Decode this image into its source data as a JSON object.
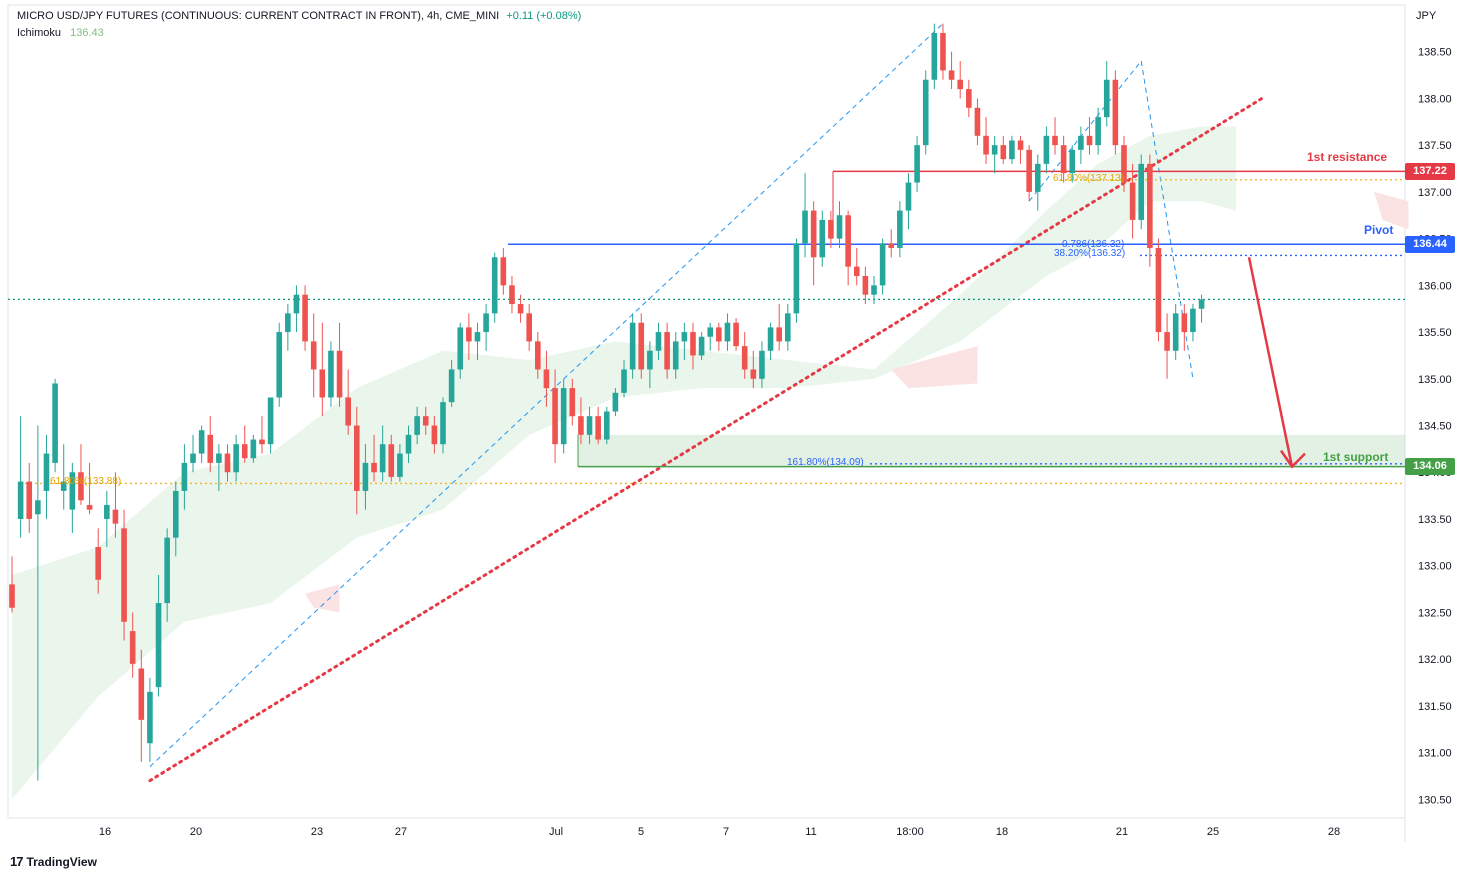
{
  "header": {
    "symbol": "MICRO USD/JPY FUTURES (CONTINUOUS: CURRENT CONTRACT IN FRONT), 4h, CME_MINI",
    "change": "+0.11 (+0.08%)",
    "indicator_name": "Ichimoku",
    "indicator_value": "136.43"
  },
  "currency": "JPY",
  "brand": {
    "logo": "17",
    "name": "TradingView"
  },
  "annotations": {
    "resistance_label": "1st resistance",
    "pivot_label": "Pivot",
    "support_label": "1st support",
    "fib_61_resistance": "61.80%(137.13)",
    "fib_786": "0.786(136.32)",
    "fib_382": "38.20%(136.32)",
    "fib_1618": "161.80%(134.09)",
    "fib_61_low": "61.80%(133.88)"
  },
  "price_tags": {
    "resistance": "137.22",
    "pivot": "136.44",
    "support": "134.06"
  },
  "colors": {
    "up": "#26a69a",
    "down": "#ef5350",
    "resistance": "#e53945",
    "pivot": "#2962ff",
    "support": "#43a047",
    "fib": "#f0b429",
    "cloud_bull": "#e3f2e5",
    "cloud_bear": "#fbe3e3"
  },
  "chart_data": {
    "type": "candlestick",
    "timeframe": "4h",
    "ylim": [
      130.3,
      139.0
    ],
    "y_ticks": [
      "138.50",
      "138.00",
      "137.50",
      "137.00",
      "136.50",
      "136.00",
      "135.50",
      "135.00",
      "134.50",
      "134.00",
      "133.50",
      "133.00",
      "132.50",
      "132.00",
      "131.50",
      "131.00",
      "130.50"
    ],
    "x_ticks": [
      "16",
      "20",
      "23",
      "27",
      "Jul",
      "5",
      "7",
      "11",
      "18:00",
      "18",
      "21",
      "25",
      "28"
    ],
    "levels": {
      "resistance": 137.22,
      "pivot": 136.44,
      "support": 134.06,
      "fib_61_resistance": 137.13,
      "fib_382": 136.32,
      "fib_1618": 134.09,
      "fib_61_low": 133.88,
      "last_price": 135.85
    },
    "projection": {
      "from": 136.3,
      "to": 134.06,
      "direction": "down"
    },
    "candles": [
      [
        132.8,
        133.1,
        132.5,
        132.55
      ],
      [
        133.5,
        134.6,
        133.3,
        133.9
      ],
      [
        133.9,
        134.1,
        133.35,
        133.5
      ],
      [
        133.55,
        134.5,
        130.7,
        133.7
      ],
      [
        133.8,
        134.4,
        133.5,
        134.2
      ],
      [
        134.1,
        135.0,
        134.0,
        134.95
      ],
      [
        133.8,
        134.3,
        133.6,
        133.9
      ],
      [
        133.6,
        134.1,
        133.35,
        134.0
      ],
      [
        134.0,
        134.3,
        133.65,
        133.7
      ],
      [
        133.65,
        134.1,
        133.55,
        133.6
      ],
      [
        133.2,
        133.4,
        132.7,
        132.85
      ],
      [
        133.5,
        133.8,
        133.2,
        133.65
      ],
      [
        133.6,
        134.0,
        133.3,
        133.45
      ],
      [
        133.4,
        133.6,
        132.2,
        132.4
      ],
      [
        132.3,
        132.5,
        131.8,
        131.95
      ],
      [
        131.9,
        132.1,
        130.9,
        131.35
      ],
      [
        131.1,
        131.8,
        130.9,
        131.65
      ],
      [
        131.7,
        132.9,
        131.6,
        132.6
      ],
      [
        132.6,
        133.4,
        132.4,
        133.3
      ],
      [
        133.3,
        133.9,
        133.1,
        133.8
      ],
      [
        133.8,
        134.3,
        133.6,
        134.1
      ],
      [
        134.1,
        134.4,
        134.0,
        134.2
      ],
      [
        134.2,
        134.5,
        134.1,
        134.45
      ],
      [
        134.4,
        134.6,
        134.0,
        134.1
      ],
      [
        134.1,
        134.3,
        133.8,
        134.2
      ],
      [
        134.2,
        134.3,
        133.9,
        134.0
      ],
      [
        134.0,
        134.4,
        133.9,
        134.3
      ],
      [
        134.3,
        134.5,
        134.1,
        134.15
      ],
      [
        134.15,
        134.4,
        134.1,
        134.35
      ],
      [
        134.35,
        134.6,
        134.2,
        134.3
      ],
      [
        134.3,
        134.8,
        134.2,
        134.8
      ],
      [
        134.8,
        135.6,
        134.7,
        135.5
      ],
      [
        135.5,
        135.8,
        135.3,
        135.7
      ],
      [
        135.7,
        136.0,
        135.5,
        135.9
      ],
      [
        135.9,
        136.0,
        135.3,
        135.4
      ],
      [
        135.4,
        135.7,
        134.8,
        135.1
      ],
      [
        135.1,
        135.6,
        134.6,
        134.8
      ],
      [
        134.8,
        135.4,
        134.7,
        135.3
      ],
      [
        135.3,
        135.6,
        134.7,
        134.8
      ],
      [
        134.8,
        135.1,
        134.4,
        134.5
      ],
      [
        134.5,
        134.7,
        133.55,
        133.8
      ],
      [
        133.8,
        134.3,
        133.6,
        134.1
      ],
      [
        134.1,
        134.4,
        133.9,
        134.0
      ],
      [
        134.0,
        134.5,
        133.9,
        134.3
      ],
      [
        134.3,
        134.4,
        133.9,
        133.95
      ],
      [
        133.95,
        134.3,
        133.9,
        134.2
      ],
      [
        134.2,
        134.5,
        134.1,
        134.4
      ],
      [
        134.4,
        134.7,
        134.3,
        134.6
      ],
      [
        134.6,
        134.7,
        134.4,
        134.5
      ],
      [
        134.5,
        134.6,
        134.2,
        134.3
      ],
      [
        134.3,
        134.8,
        134.2,
        134.75
      ],
      [
        134.75,
        135.2,
        134.7,
        135.1
      ],
      [
        135.1,
        135.6,
        135.0,
        135.55
      ],
      [
        135.55,
        135.7,
        135.2,
        135.4
      ],
      [
        135.4,
        135.6,
        135.2,
        135.5
      ],
      [
        135.5,
        135.8,
        135.3,
        135.7
      ],
      [
        135.7,
        136.35,
        135.6,
        136.3
      ],
      [
        136.3,
        136.4,
        135.9,
        136.0
      ],
      [
        136.0,
        136.1,
        135.7,
        135.8
      ],
      [
        135.8,
        135.9,
        135.6,
        135.7
      ],
      [
        135.7,
        135.8,
        135.3,
        135.4
      ],
      [
        135.4,
        135.5,
        135.0,
        135.1
      ],
      [
        135.1,
        135.3,
        134.7,
        134.9
      ],
      [
        134.9,
        135.1,
        134.1,
        134.3
      ],
      [
        134.3,
        135.0,
        134.2,
        134.9
      ],
      [
        134.9,
        135.0,
        134.5,
        134.6
      ],
      [
        134.6,
        134.8,
        134.3,
        134.4
      ],
      [
        134.4,
        134.7,
        134.3,
        134.6
      ],
      [
        134.6,
        134.7,
        134.3,
        134.35
      ],
      [
        134.35,
        134.7,
        134.3,
        134.65
      ],
      [
        134.65,
        134.9,
        134.6,
        134.85
      ],
      [
        134.85,
        135.2,
        134.8,
        135.1
      ],
      [
        135.1,
        135.7,
        135.0,
        135.6
      ],
      [
        135.6,
        135.7,
        135.0,
        135.1
      ],
      [
        135.1,
        135.4,
        134.9,
        135.3
      ],
      [
        135.3,
        135.6,
        135.2,
        135.5
      ],
      [
        135.5,
        135.6,
        135.0,
        135.1
      ],
      [
        135.1,
        135.5,
        135.0,
        135.4
      ],
      [
        135.4,
        135.6,
        135.2,
        135.5
      ],
      [
        135.5,
        135.6,
        135.1,
        135.25
      ],
      [
        135.25,
        135.5,
        135.2,
        135.45
      ],
      [
        135.45,
        135.6,
        135.3,
        135.55
      ],
      [
        135.55,
        135.6,
        135.3,
        135.4
      ],
      [
        135.4,
        135.7,
        135.3,
        135.6
      ],
      [
        135.6,
        135.65,
        135.3,
        135.35
      ],
      [
        135.35,
        135.5,
        135.0,
        135.1
      ],
      [
        135.1,
        135.3,
        134.9,
        135.0
      ],
      [
        135.0,
        135.4,
        134.9,
        135.3
      ],
      [
        135.3,
        135.6,
        135.2,
        135.55
      ],
      [
        135.55,
        135.8,
        135.3,
        135.4
      ],
      [
        135.4,
        135.8,
        135.3,
        135.7
      ],
      [
        135.7,
        136.5,
        135.6,
        136.45
      ],
      [
        136.45,
        137.2,
        136.3,
        136.8
      ],
      [
        136.8,
        136.9,
        136.0,
        136.3
      ],
      [
        136.3,
        136.8,
        136.2,
        136.7
      ],
      [
        136.7,
        136.8,
        136.4,
        136.5
      ],
      [
        136.5,
        136.9,
        136.4,
        136.75
      ],
      [
        136.75,
        136.8,
        136.0,
        136.2
      ],
      [
        136.2,
        136.4,
        136.0,
        136.1
      ],
      [
        136.1,
        136.2,
        135.8,
        135.9
      ],
      [
        135.9,
        136.1,
        135.8,
        136.0
      ],
      [
        136.0,
        136.5,
        135.9,
        136.45
      ],
      [
        136.45,
        136.6,
        136.3,
        136.4
      ],
      [
        136.4,
        136.9,
        136.3,
        136.8
      ],
      [
        136.8,
        137.2,
        136.6,
        137.1
      ],
      [
        137.1,
        137.6,
        137.0,
        137.5
      ],
      [
        137.5,
        138.3,
        137.4,
        138.2
      ],
      [
        138.2,
        138.8,
        138.1,
        138.7
      ],
      [
        138.7,
        138.8,
        138.2,
        138.3
      ],
      [
        138.3,
        138.5,
        138.1,
        138.2
      ],
      [
        138.2,
        138.4,
        138.0,
        138.1
      ],
      [
        138.1,
        138.2,
        137.8,
        137.9
      ],
      [
        137.9,
        138.0,
        137.5,
        137.6
      ],
      [
        137.6,
        137.8,
        137.3,
        137.4
      ],
      [
        137.4,
        137.6,
        137.2,
        137.5
      ],
      [
        137.5,
        137.6,
        137.3,
        137.35
      ],
      [
        137.35,
        137.6,
        137.3,
        137.55
      ],
      [
        137.55,
        137.6,
        137.3,
        137.45
      ],
      [
        137.45,
        137.5,
        136.9,
        137.0
      ],
      [
        137.0,
        137.4,
        136.8,
        137.3
      ],
      [
        137.3,
        137.7,
        137.2,
        137.6
      ],
      [
        137.6,
        137.8,
        137.4,
        137.5
      ],
      [
        137.5,
        137.6,
        137.1,
        137.2
      ],
      [
        137.2,
        137.5,
        137.1,
        137.45
      ],
      [
        137.45,
        137.7,
        137.3,
        137.6
      ],
      [
        137.6,
        137.8,
        137.4,
        137.5
      ],
      [
        137.5,
        137.9,
        137.4,
        137.8
      ],
      [
        137.8,
        138.4,
        137.7,
        138.2
      ],
      [
        138.2,
        138.3,
        137.4,
        137.5
      ],
      [
        137.5,
        137.6,
        137.0,
        137.1
      ],
      [
        137.1,
        137.3,
        136.5,
        136.7
      ],
      [
        136.7,
        137.4,
        136.6,
        137.3
      ],
      [
        137.3,
        137.4,
        136.2,
        136.4
      ],
      [
        136.4,
        136.5,
        135.4,
        135.5
      ],
      [
        135.5,
        135.7,
        135.0,
        135.3
      ],
      [
        135.3,
        135.8,
        135.2,
        135.7
      ],
      [
        135.7,
        135.8,
        135.3,
        135.5
      ],
      [
        135.5,
        135.8,
        135.4,
        135.75
      ],
      [
        135.75,
        135.9,
        135.6,
        135.85
      ]
    ],
    "cloud": {
      "upper": [
        [
          0,
          132.9
        ],
        [
          10,
          133.2
        ],
        [
          20,
          134.0
        ],
        [
          30,
          134.2
        ],
        [
          40,
          134.9
        ],
        [
          50,
          135.3
        ],
        [
          60,
          135.2
        ],
        [
          70,
          135.4
        ],
        [
          80,
          135.3
        ],
        [
          90,
          135.2
        ],
        [
          100,
          135.1
        ],
        [
          110,
          135.9
        ],
        [
          120,
          136.8
        ],
        [
          126,
          137.3
        ],
        [
          132,
          137.6
        ],
        [
          138,
          137.7
        ],
        [
          142,
          137.7
        ]
      ],
      "lower": [
        [
          0,
          130.5
        ],
        [
          10,
          131.6
        ],
        [
          20,
          132.4
        ],
        [
          30,
          132.6
        ],
        [
          40,
          133.3
        ],
        [
          50,
          133.6
        ],
        [
          60,
          134.4
        ],
        [
          70,
          134.8
        ],
        [
          80,
          134.9
        ],
        [
          90,
          134.9
        ],
        [
          100,
          135.0
        ],
        [
          110,
          135.4
        ],
        [
          120,
          136.1
        ],
        [
          126,
          136.4
        ],
        [
          132,
          136.9
        ],
        [
          138,
          136.9
        ],
        [
          142,
          136.8
        ]
      ]
    },
    "guides": {
      "fib_swing_1": [
        [
          16,
          130.85
        ],
        [
          108,
          138.8
        ]
      ],
      "fib_swing_2": [
        [
          118,
          136.9
        ],
        [
          131,
          138.4
        ]
      ],
      "fib_swing_3": [
        [
          131,
          138.4
        ],
        [
          137,
          135.0
        ]
      ],
      "trendline": [
        [
          16,
          130.7
        ],
        [
          145,
          138.0
        ]
      ]
    }
  }
}
